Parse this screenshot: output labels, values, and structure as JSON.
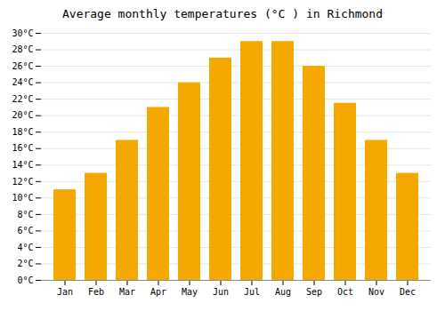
{
  "chart_data": {
    "type": "bar",
    "title": "Average monthly temperatures (°C ) in Richmond",
    "categories": [
      "Jan",
      "Feb",
      "Mar",
      "Apr",
      "May",
      "Jun",
      "Jul",
      "Aug",
      "Sep",
      "Oct",
      "Nov",
      "Dec"
    ],
    "values": [
      11.0,
      13.0,
      17.0,
      21.0,
      24.0,
      27.0,
      29.0,
      29.0,
      26.0,
      21.5,
      17.0,
      13.0
    ],
    "color": "#F5A800",
    "ylim": [
      0,
      30
    ],
    "yticks": [
      {
        "value": 0,
        "label": "0°C"
      },
      {
        "value": 2,
        "label": "2°C"
      },
      {
        "value": 4,
        "label": "4°C"
      },
      {
        "value": 6,
        "label": "6°C"
      },
      {
        "value": 8,
        "label": "8°C"
      },
      {
        "value": 10,
        "label": "10°C"
      },
      {
        "value": 12,
        "label": "12°C"
      },
      {
        "value": 14,
        "label": "14°C"
      },
      {
        "value": 16,
        "label": "16°C"
      },
      {
        "value": 18,
        "label": "18°C"
      },
      {
        "value": 20,
        "label": "20°C"
      },
      {
        "value": 22,
        "label": "22°C"
      },
      {
        "value": 24,
        "label": "24°C"
      },
      {
        "value": 26,
        "label": "26°C"
      },
      {
        "value": 28,
        "label": "28°C"
      },
      {
        "value": 30,
        "label": "30°C"
      }
    ],
    "grid": true
  }
}
